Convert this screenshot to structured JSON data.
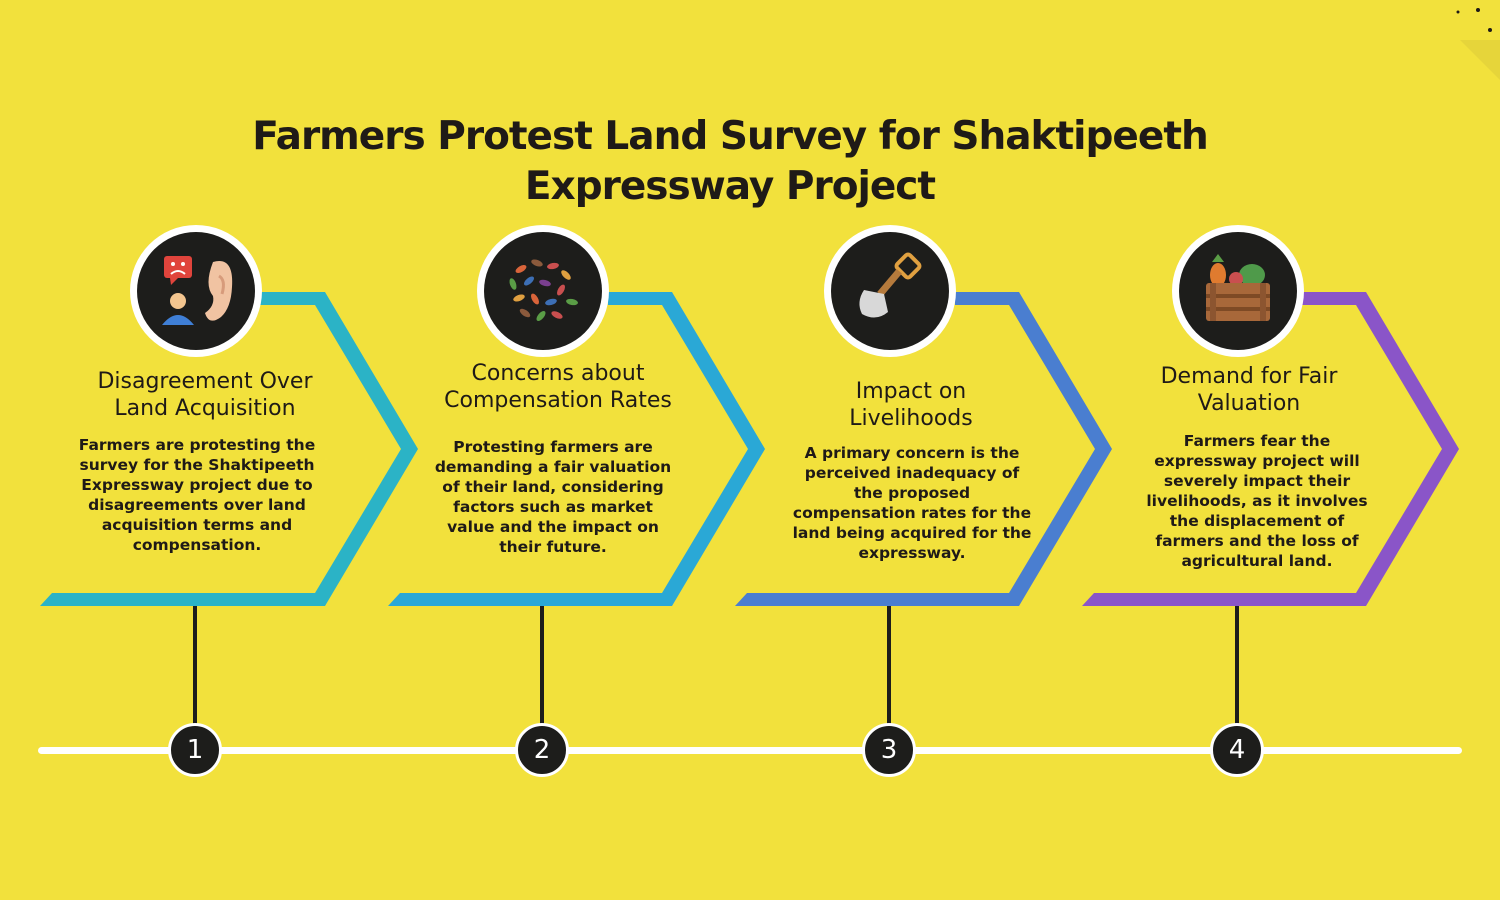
{
  "title": "Farmers Protest Land Survey for Shaktipeeth Expressway Project",
  "colors": {
    "background": "#f2e13c",
    "step1": "#2bb3c6",
    "step2": "#2aa8d6",
    "step3": "#4a7ed0",
    "step4": "#8a55c8",
    "circle": "#1d1d1b"
  },
  "steps": [
    {
      "number": "1",
      "icon": "ear-listening-sad-speech-icon",
      "heading": "Disagreement Over Land Acquisition",
      "body": "Farmers are protesting the survey for the Shaktipeeth Expressway project due to disagreements over land acquisition terms and compensation."
    },
    {
      "number": "2",
      "icon": "seeds-beans-icon",
      "heading": "Concerns about Compensation Rates",
      "body": "Protesting farmers are demanding a fair valuation of their land, considering factors such as market value and the impact on their future."
    },
    {
      "number": "3",
      "icon": "shovel-icon",
      "heading": "Impact on Livelihoods",
      "body": "A primary concern is the perceived inadequacy of the proposed compensation rates for the land being acquired for the expressway."
    },
    {
      "number": "4",
      "icon": "vegetable-crate-icon",
      "heading": "Demand for Fair Valuation",
      "body": "Farmers fear the expressway project will severely impact their livelihoods, as it involves the displacement of farmers and the loss of agricultural land."
    }
  ]
}
